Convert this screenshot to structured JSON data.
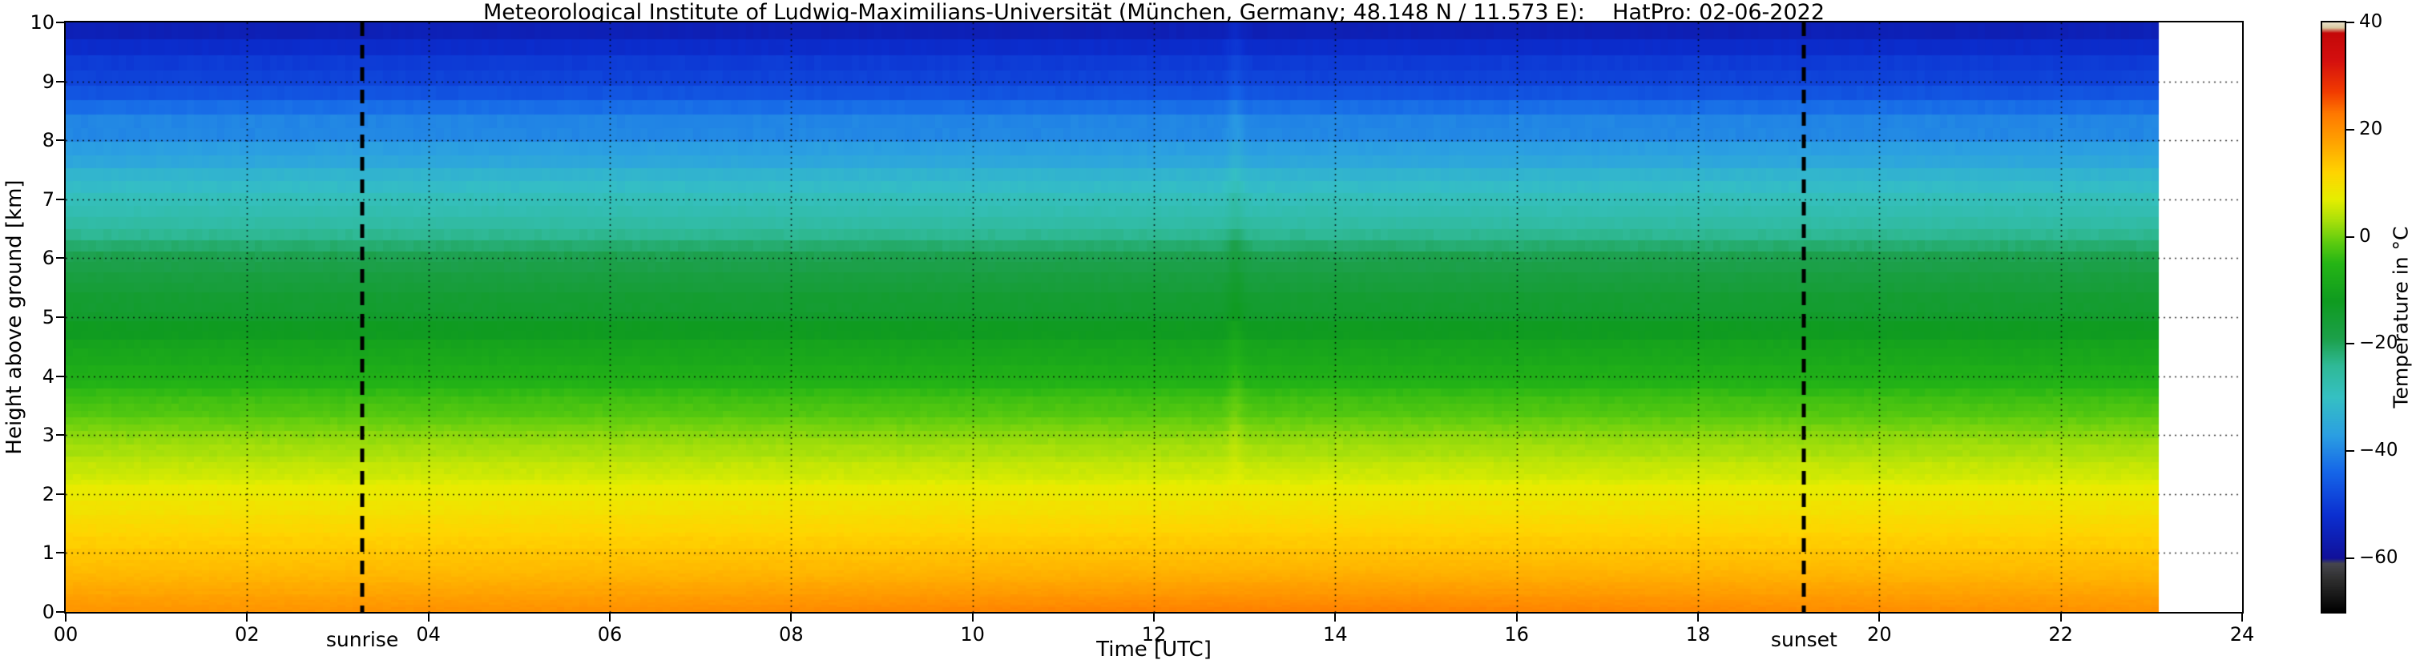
{
  "chart_data": {
    "type": "heatmap",
    "title": "Meteorological Institute of Ludwig-Maximilians-Universität (München, Germany; 48.148 N / 11.573 E):    HatPro: 02-06-2022",
    "xlabel": "Time [UTC]",
    "ylabel": "Height above ground [km]",
    "x_range": [
      0,
      24
    ],
    "y_range": [
      0,
      10
    ],
    "time_extent": [
      0,
      23.08
    ],
    "x_ticks": [
      {
        "value": 0,
        "label": "00"
      },
      {
        "value": 2,
        "label": "02"
      },
      {
        "value": 4,
        "label": "04"
      },
      {
        "value": 6,
        "label": "06"
      },
      {
        "value": 8,
        "label": "08"
      },
      {
        "value": 10,
        "label": "10"
      },
      {
        "value": 12,
        "label": "12"
      },
      {
        "value": 14,
        "label": "14"
      },
      {
        "value": 16,
        "label": "16"
      },
      {
        "value": 18,
        "label": "18"
      },
      {
        "value": 20,
        "label": "20"
      },
      {
        "value": 22,
        "label": "22"
      },
      {
        "value": 24,
        "label": "24"
      }
    ],
    "y_ticks": [
      {
        "value": 0,
        "label": "0"
      },
      {
        "value": 1,
        "label": "1"
      },
      {
        "value": 2,
        "label": "2"
      },
      {
        "value": 3,
        "label": "3"
      },
      {
        "value": 4,
        "label": "4"
      },
      {
        "value": 5,
        "label": "5"
      },
      {
        "value": 6,
        "label": "6"
      },
      {
        "value": 7,
        "label": "7"
      },
      {
        "value": 8,
        "label": "8"
      },
      {
        "value": 9,
        "label": "9"
      },
      {
        "value": 10,
        "label": "10"
      }
    ],
    "grid": {
      "style": "dotted-black",
      "x_values": [
        2,
        4,
        6,
        8,
        10,
        12,
        14,
        16,
        18,
        20,
        22
      ],
      "y_values": [
        1,
        2,
        3,
        4,
        5,
        6,
        7,
        8,
        9
      ]
    },
    "annotations": [
      {
        "label": "sunrise",
        "time": 3.27,
        "style": "thick-dashed-vertical-black"
      },
      {
        "label": "sunset",
        "time": 19.17,
        "style": "thick-dashed-vertical-black"
      }
    ],
    "colorbar": {
      "label": "Temperature in °C",
      "range": [
        -70,
        40
      ],
      "ticks": [
        {
          "value": 40,
          "label": "40"
        },
        {
          "value": 20,
          "label": "20"
        },
        {
          "value": 0,
          "label": "0"
        },
        {
          "value": -20,
          "label": "−20"
        },
        {
          "value": -40,
          "label": "−40"
        },
        {
          "value": -60,
          "label": "−60"
        }
      ]
    },
    "colormap_stops": [
      {
        "value": -70,
        "color": "#000000"
      },
      {
        "value": -64,
        "color": "#2e2e2e"
      },
      {
        "value": -61,
        "color": "#46464e"
      },
      {
        "value": -60,
        "color": "#10109a"
      },
      {
        "value": -52,
        "color": "#0b2fd0"
      },
      {
        "value": -44,
        "color": "#1565e8"
      },
      {
        "value": -37,
        "color": "#2b9fe2"
      },
      {
        "value": -30,
        "color": "#35c0c3"
      },
      {
        "value": -24,
        "color": "#2fb996"
      },
      {
        "value": -19,
        "color": "#1ca04a"
      },
      {
        "value": -12,
        "color": "#0f9b20"
      },
      {
        "value": -5,
        "color": "#25b515"
      },
      {
        "value": -1,
        "color": "#5ecc0f"
      },
      {
        "value": 3,
        "color": "#a8e00a"
      },
      {
        "value": 7,
        "color": "#e6ee00"
      },
      {
        "value": 12,
        "color": "#ffd400"
      },
      {
        "value": 18,
        "color": "#ffa000"
      },
      {
        "value": 23,
        "color": "#ff7800"
      },
      {
        "value": 27,
        "color": "#f23c00"
      },
      {
        "value": 33,
        "color": "#d40f0f"
      },
      {
        "value": 38,
        "color": "#c40808"
      },
      {
        "value": 39,
        "color": "#d8c8a0"
      },
      {
        "value": 40,
        "color": "#e8e0c8"
      }
    ],
    "temperature_profile": [
      [
        0,
        19.5
      ],
      [
        0.3,
        17.5
      ],
      [
        0.7,
        15
      ],
      [
        1,
        13.5
      ],
      [
        1.5,
        11
      ],
      [
        2,
        8
      ],
      [
        2.5,
        4.5
      ],
      [
        3,
        1
      ],
      [
        3.5,
        -2.5
      ],
      [
        4,
        -6.5
      ],
      [
        4.5,
        -10
      ],
      [
        5,
        -13.5
      ],
      [
        5.5,
        -16.5
      ],
      [
        6,
        -19.5
      ],
      [
        6.3,
        -23
      ],
      [
        6.8,
        -27
      ],
      [
        7,
        -29
      ],
      [
        7.5,
        -33
      ],
      [
        8,
        -38
      ],
      [
        8.5,
        -43
      ],
      [
        9,
        -48
      ],
      [
        9.5,
        -52.5
      ],
      [
        10,
        -56
      ]
    ],
    "features": [
      {
        "type": "warm-column-anomaly",
        "time": 12.9
      }
    ]
  }
}
